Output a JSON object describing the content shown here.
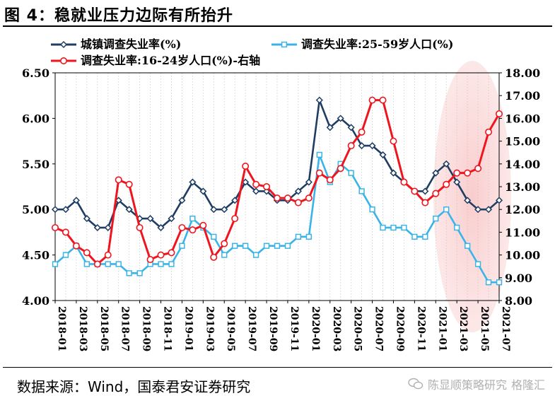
{
  "figure": {
    "title": "图 4：稳就业压力边际有所抬升",
    "source": "数据来源：Wind，国泰君安证券研究",
    "watermark": "陈显顺策略研究",
    "watermark_tail": "格隆汇"
  },
  "chart_data": {
    "type": "line",
    "title": "",
    "xlabel": "",
    "ylabel": "",
    "x": [
      "2018-01",
      "2018-02",
      "2018-03",
      "2018-04",
      "2018-05",
      "2018-06",
      "2018-07",
      "2018-08",
      "2018-09",
      "2018-10",
      "2018-11",
      "2018-12",
      "2019-01",
      "2019-02",
      "2019-03",
      "2019-04",
      "2019-05",
      "2019-06",
      "2019-07",
      "2019-08",
      "2019-09",
      "2019-10",
      "2019-11",
      "2019-12",
      "2020-01",
      "2020-02",
      "2020-03",
      "2020-04",
      "2020-05",
      "2020-06",
      "2020-07",
      "2020-08",
      "2020-09",
      "2020-10",
      "2020-11",
      "2020-12",
      "2021-01",
      "2021-02",
      "2021-03",
      "2021-04",
      "2021-05",
      "2021-06",
      "2021-07"
    ],
    "xticks": [
      "2018-01",
      "2018-03",
      "2018-05",
      "2018-07",
      "2018-09",
      "2018-11",
      "2019-01",
      "2019-03",
      "2019-05",
      "2019-07",
      "2019-09",
      "2019-11",
      "2020-01",
      "2020-03",
      "2020-05",
      "2020-07",
      "2020-09",
      "2020-11",
      "2021-01",
      "2021-03",
      "2021-05",
      "2021-07"
    ],
    "y_left": {
      "min": 4.0,
      "max": 6.5,
      "ticks": [
        "4.00",
        "4.50",
        "5.00",
        "5.50",
        "6.00",
        "6.50"
      ]
    },
    "y_right": {
      "min": 8.0,
      "max": 18.0,
      "label": "右轴",
      "ticks": [
        "8.00",
        "9.00",
        "10.00",
        "11.00",
        "12.00",
        "13.00",
        "14.00",
        "15.00",
        "16.00",
        "17.00",
        "18.00"
      ]
    },
    "grid": true,
    "legend_position": "top",
    "series": [
      {
        "name": "城镇调查失业率(%)",
        "axis": "left",
        "color": "#1f3d62",
        "marker": "diamond",
        "values": [
          5.0,
          5.0,
          5.1,
          4.9,
          4.8,
          4.8,
          5.1,
          5.0,
          4.9,
          4.9,
          4.8,
          4.9,
          5.1,
          5.3,
          5.2,
          5.0,
          5.0,
          5.1,
          5.3,
          5.2,
          5.2,
          5.1,
          5.1,
          5.2,
          5.3,
          6.2,
          5.9,
          6.0,
          5.9,
          5.7,
          5.7,
          5.6,
          5.4,
          5.3,
          5.2,
          5.2,
          5.4,
          5.5,
          5.3,
          5.1,
          5.0,
          5.0,
          5.1
        ]
      },
      {
        "name": "调查失业率:25-59岁人口(%)",
        "axis": "left",
        "color": "#3ab4e8",
        "marker": "square",
        "values": [
          4.4,
          4.5,
          4.6,
          4.4,
          4.4,
          4.4,
          4.4,
          4.3,
          4.3,
          4.4,
          4.4,
          4.4,
          4.6,
          4.9,
          4.8,
          4.7,
          4.5,
          4.6,
          4.6,
          4.5,
          4.6,
          4.6,
          4.6,
          4.7,
          4.7,
          5.6,
          5.3,
          5.5,
          5.4,
          5.2,
          5.0,
          4.8,
          4.8,
          4.8,
          4.7,
          4.7,
          4.9,
          5.0,
          4.8,
          4.6,
          4.4,
          4.2,
          4.2
        ]
      },
      {
        "name": "调查失业率:16-24岁人口(%)-右轴",
        "axis": "right",
        "color": "#f0141e",
        "marker": "circle",
        "values": [
          11.2,
          11.0,
          10.4,
          10.1,
          9.6,
          10.0,
          13.3,
          13.1,
          11.2,
          9.8,
          10.0,
          10.1,
          11.2,
          11.1,
          11.3,
          9.9,
          10.5,
          11.6,
          13.9,
          13.1,
          13.0,
          12.5,
          12.5,
          12.3,
          12.5,
          13.6,
          13.3,
          13.8,
          14.8,
          15.4,
          16.8,
          16.8,
          15.0,
          13.2,
          12.8,
          12.3,
          12.7,
          13.1,
          13.6,
          13.6,
          13.8,
          15.4,
          16.2
        ]
      }
    ]
  }
}
